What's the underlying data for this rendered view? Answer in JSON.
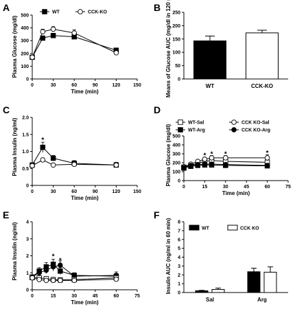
{
  "chart_data": [
    {
      "panel": "A",
      "type": "line",
      "xlabel": "Time (min)",
      "ylabel": "Plasma Glucose (mg/dl)",
      "xlim": [
        0,
        150
      ],
      "ylim": [
        0,
        500
      ],
      "xticks": [
        0,
        30,
        60,
        90,
        120,
        150
      ],
      "yticks": [
        0,
        100,
        200,
        300,
        400,
        500
      ],
      "legend_position": "top",
      "series": [
        {
          "name": "WT",
          "marker": "square-filled",
          "x": [
            0,
            15,
            30,
            60,
            120
          ],
          "y": [
            170,
            320,
            340,
            330,
            225
          ],
          "err": [
            10,
            15,
            15,
            15,
            10
          ]
        },
        {
          "name": "CCK-KO",
          "marker": "circle-open",
          "x": [
            0,
            15,
            30,
            60,
            120
          ],
          "y": [
            170,
            370,
            390,
            360,
            205
          ],
          "err": [
            10,
            20,
            20,
            25,
            10
          ]
        }
      ],
      "annotations": []
    },
    {
      "panel": "B",
      "type": "bar",
      "xlabel": "",
      "ylabel": "Means of Glucose AUC (mg/dl in 120 min)",
      "ylim": [
        0,
        250
      ],
      "yticks": [
        0,
        50,
        100,
        150,
        200,
        250
      ],
      "categories": [
        "WT",
        "CCK-KO"
      ],
      "values": [
        143,
        173
      ],
      "err": [
        18,
        10
      ],
      "fills": [
        "#000000",
        "#ffffff"
      ]
    },
    {
      "panel": "C",
      "type": "line",
      "xlabel": "Time (min)",
      "ylabel": "Plasma Insulin (ng/ml)",
      "xlim": [
        0,
        150
      ],
      "ylim": [
        0,
        2.0
      ],
      "xticks": [
        0,
        30,
        60,
        90,
        120,
        150
      ],
      "yticks": [
        0,
        0.5,
        1.0,
        1.5,
        2.0
      ],
      "ytick_labels": [
        "0",
        "0.5",
        "1.0",
        "1.5",
        "2.0"
      ],
      "series": [
        {
          "marker": "square-filled",
          "x": [
            0,
            15,
            30,
            60,
            120
          ],
          "y": [
            0.6,
            1.12,
            0.8,
            0.65,
            0.6
          ],
          "err": [
            0.05,
            0.15,
            0.08,
            0.08,
            0.08
          ]
        },
        {
          "marker": "circle-open",
          "x": [
            0,
            15,
            30,
            60,
            120
          ],
          "y": [
            0.58,
            0.75,
            0.6,
            0.62,
            0.6
          ],
          "err": [
            0.05,
            0.06,
            0.05,
            0.06,
            0.05
          ]
        }
      ],
      "annotations": [
        {
          "text": "*",
          "x": 15,
          "y": 1.35
        }
      ]
    },
    {
      "panel": "D",
      "type": "line",
      "xlabel": "Time (min)",
      "ylabel": "Plasma Glucose (mg/dl)",
      "xlim": [
        0,
        75
      ],
      "ylim": [
        0,
        500
      ],
      "xticks": [
        0,
        15,
        30,
        45,
        60,
        75
      ],
      "yticks": [
        0,
        100,
        200,
        300,
        400,
        500
      ],
      "legend_position": "top",
      "series": [
        {
          "name": "WT-Sal",
          "marker": "square-open",
          "x": [
            0,
            5,
            10,
            15,
            20,
            30,
            60
          ],
          "y": [
            150,
            170,
            195,
            215,
            225,
            215,
            205
          ],
          "err": [
            10,
            10,
            12,
            12,
            12,
            12,
            12
          ]
        },
        {
          "name": "CCK KO-Sal",
          "marker": "circle-open",
          "x": [
            0,
            5,
            10,
            15,
            20,
            30,
            60
          ],
          "y": [
            155,
            185,
            215,
            240,
            255,
            255,
            255
          ],
          "err": [
            10,
            12,
            15,
            20,
            25,
            25,
            35
          ]
        },
        {
          "name": "WT-Arg",
          "marker": "square-filled",
          "x": [
            0,
            5,
            10,
            15,
            20,
            30,
            60
          ],
          "y": [
            140,
            160,
            170,
            175,
            175,
            170,
            165
          ],
          "err": [
            8,
            8,
            8,
            8,
            8,
            8,
            8
          ]
        },
        {
          "name": "CCK KO-Arg",
          "marker": "circle-filled",
          "x": [
            0,
            5,
            10,
            15,
            20,
            30,
            60
          ],
          "y": [
            145,
            170,
            180,
            185,
            185,
            180,
            170
          ],
          "err": [
            8,
            8,
            8,
            8,
            8,
            8,
            8
          ]
        }
      ],
      "annotations": [
        {
          "text": "*",
          "x": 15,
          "y": 290
        },
        {
          "text": "*",
          "x": 20,
          "y": 305
        },
        {
          "text": "*",
          "x": 30,
          "y": 305
        },
        {
          "text": "*",
          "x": 60,
          "y": 315
        }
      ]
    },
    {
      "panel": "E",
      "type": "line",
      "xlabel": "Time (min)",
      "ylabel": "Plasma Insulin (ng/ml)",
      "xlim": [
        0,
        75
      ],
      "ylim": [
        0,
        4
      ],
      "xticks": [
        0,
        15,
        30,
        45,
        60,
        75
      ],
      "yticks": [
        0,
        1,
        2,
        3,
        4
      ],
      "series": [
        {
          "marker": "square-filled",
          "x": [
            0,
            5,
            10,
            15,
            20,
            30,
            60
          ],
          "y": [
            0.75,
            1.1,
            1.35,
            1.5,
            1.1,
            0.85,
            0.8
          ],
          "err": [
            0.1,
            0.2,
            0.25,
            0.3,
            0.2,
            0.15,
            0.15
          ]
        },
        {
          "marker": "circle-filled",
          "x": [
            0,
            5,
            10,
            15,
            20,
            30,
            60
          ],
          "y": [
            0.75,
            1.0,
            1.15,
            1.35,
            1.45,
            0.8,
            0.85
          ],
          "err": [
            0.1,
            0.2,
            0.2,
            0.25,
            0.25,
            0.15,
            0.2
          ]
        },
        {
          "marker": "square-open",
          "x": [
            0,
            5,
            10,
            15,
            20,
            30,
            60
          ],
          "y": [
            0.72,
            0.7,
            0.65,
            0.6,
            0.58,
            0.6,
            0.7
          ],
          "err": [
            0.1,
            0.1,
            0.1,
            0.1,
            0.1,
            0.1,
            0.15
          ]
        },
        {
          "marker": "circle-open",
          "x": [
            0,
            5,
            10,
            15,
            20,
            30,
            60
          ],
          "y": [
            0.7,
            0.6,
            0.55,
            0.55,
            0.55,
            0.55,
            0.62
          ],
          "err": [
            0.1,
            0.1,
            0.1,
            0.1,
            0.1,
            0.1,
            0.12
          ]
        }
      ],
      "annotations": [
        {
          "text": "*",
          "x": 15,
          "y": 2.0
        },
        {
          "text": "*",
          "x": 20,
          "y": 1.75
        }
      ]
    },
    {
      "panel": "F",
      "type": "bar",
      "xlabel": "",
      "ylabel": "Insulin AUC (ng/ml in 60 min)",
      "ylim": [
        0,
        8
      ],
      "yticks": [
        0,
        1,
        2,
        3,
        4,
        5,
        6,
        7,
        8
      ],
      "legend_position": "top-left",
      "categories": [
        "Sal",
        "Arg"
      ],
      "series": [
        {
          "name": "WT",
          "values": [
            0.2,
            2.35
          ],
          "err": [
            0.05,
            0.4
          ],
          "fill": "#000000"
        },
        {
          "name": "CCK KO",
          "values": [
            0.35,
            2.3
          ],
          "err": [
            0.15,
            0.6
          ],
          "fill": "#ffffff"
        }
      ]
    }
  ]
}
